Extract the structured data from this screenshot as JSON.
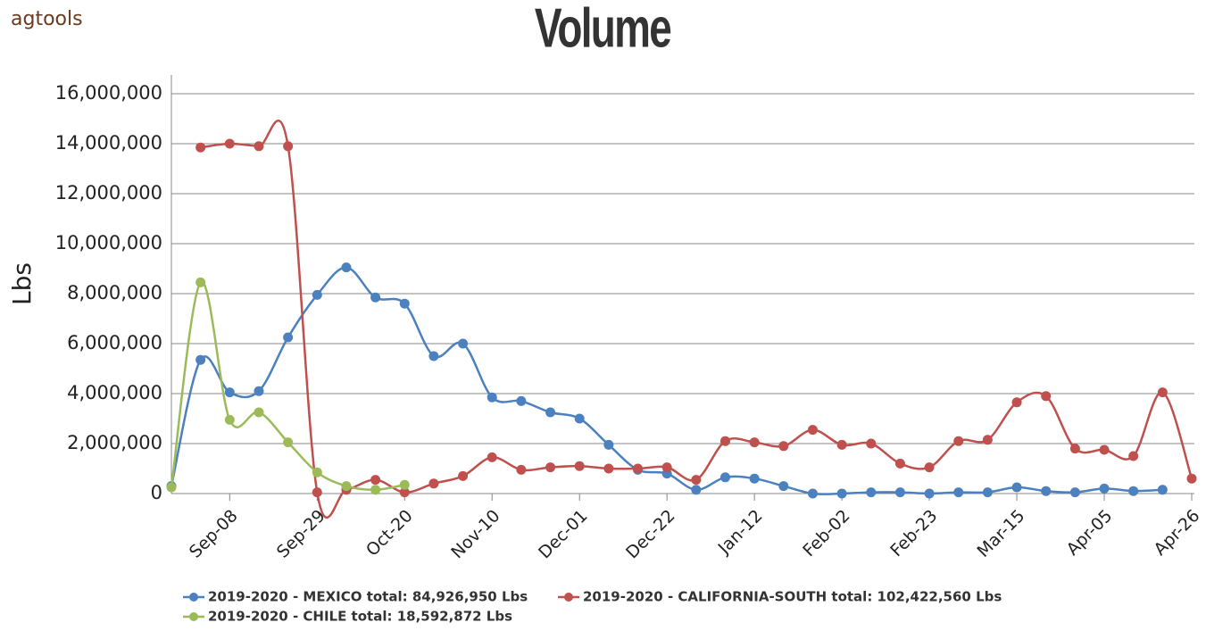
{
  "logo": "agtools",
  "chart_data": {
    "type": "line",
    "title": "Volume",
    "y_label": "Lbs",
    "categories": [
      null,
      null,
      "Sep-08",
      null,
      null,
      "Sep-29",
      null,
      null,
      "Oct-20",
      null,
      null,
      "Nov-10",
      null,
      null,
      "Dec-01",
      null,
      null,
      "Dec-22",
      null,
      null,
      "Jan-12",
      null,
      null,
      "Feb-02",
      null,
      null,
      "Feb-23",
      null,
      null,
      "Mar-15",
      null,
      null,
      "Apr-05",
      null,
      null,
      "Apr-26"
    ],
    "series": [
      {
        "name": "2019-2020 - MEXICO total: 84,926,950 Lbs",
        "color": "#4b81be",
        "values": [
          300000,
          5350000,
          4050000,
          4100000,
          6250000,
          7950000,
          9050000,
          7850000,
          7600000,
          5500000,
          6000000,
          3850000,
          3700000,
          3250000,
          3000000,
          1950000,
          950000,
          800000,
          150000,
          650000,
          600000,
          300000,
          0,
          0,
          50000,
          50000,
          0,
          50000,
          50000,
          250000,
          100000,
          50000,
          200000,
          100000,
          150000,
          null
        ]
      },
      {
        "name": "2019-2020 - CALIFORNIA-SOUTH total: 102,422,560 Lbs",
        "color": "#c0504d",
        "values": [
          null,
          13850000,
          14000000,
          13900000,
          13900000,
          50000,
          150000,
          550000,
          50000,
          400000,
          700000,
          1450000,
          950000,
          1050000,
          1100000,
          1000000,
          1000000,
          1050000,
          550000,
          2100000,
          2050000,
          1900000,
          2550000,
          1950000,
          2000000,
          1200000,
          1050000,
          2100000,
          2150000,
          3650000,
          3900000,
          1800000,
          1750000,
          1500000,
          4050000,
          600000
        ]
      },
      {
        "name": "2019-2020 - CHILE total: 18,592,872 Lbs",
        "color": "#9bbb59",
        "values": [
          250000,
          8450000,
          2950000,
          3250000,
          2050000,
          850000,
          300000,
          150000,
          350000,
          null,
          null,
          null,
          null,
          null,
          null,
          null,
          null,
          null,
          null,
          null,
          null,
          null,
          null,
          null,
          null,
          null,
          null,
          null,
          null,
          null,
          null,
          null,
          null,
          null,
          null,
          null
        ]
      }
    ],
    "ylim": [
      0,
      16000000
    ],
    "yticks": [
      0,
      {
        "value": 2000000,
        "label": "2,000,000"
      },
      {
        "value": 4000000,
        "label": "4,000,000"
      },
      {
        "value": 6000000,
        "label": "6,000,000"
      },
      {
        "value": 8000000,
        "label": "8,000,000"
      },
      {
        "value": 10000000,
        "label": "10,000,000"
      },
      {
        "value": 12000000,
        "label": "12,000,000"
      },
      {
        "value": 14000000,
        "label": "14,000,000"
      },
      {
        "value": 16000000,
        "label": "16,000,000"
      }
    ],
    "grid": true
  }
}
